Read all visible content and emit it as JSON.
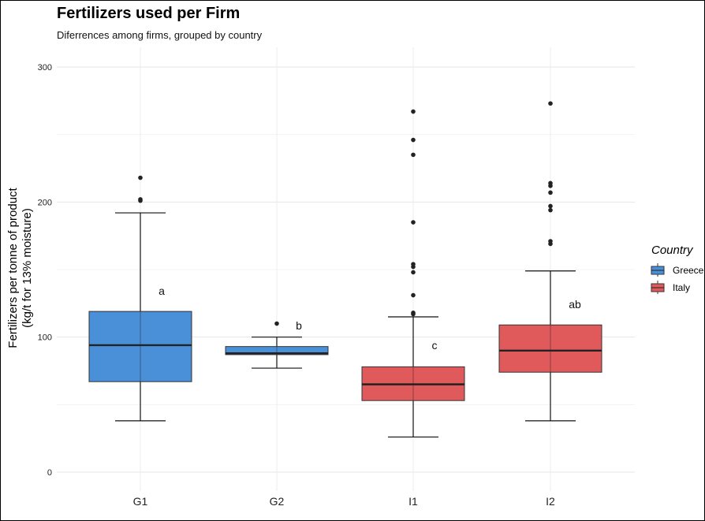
{
  "chart_data": {
    "type": "box",
    "title": "Fertilizers used per Firm",
    "subtitle": "Diferrences among firms, grouped by country",
    "ylabel_line1": "Fertilizers per tonne of product",
    "ylabel_line2": "(kg/t for 13% moisture)",
    "xlabel": "",
    "ylim": [
      -15,
      308
    ],
    "yticks": [
      0,
      100,
      200,
      300
    ],
    "grid": true,
    "legend": {
      "title": "Country",
      "placement": "right",
      "entries": [
        {
          "label": "Greece",
          "color": "#4a90d9"
        },
        {
          "label": "Italy",
          "color": "#e05a5c"
        }
      ]
    },
    "boxes": [
      {
        "category": "G1",
        "country": "Greece",
        "whisker_low": 38,
        "q1": 67,
        "median": 94,
        "q3": 119,
        "whisker_high": 192,
        "outliers": [
          218,
          201,
          202
        ],
        "annotation": "a"
      },
      {
        "category": "G2",
        "country": "Greece",
        "whisker_low": 77,
        "q1": 87,
        "median": 88,
        "q3": 93,
        "whisker_high": 100,
        "outliers": [
          110
        ],
        "annotation": "b"
      },
      {
        "category": "I1",
        "country": "Italy",
        "whisker_low": 26,
        "q1": 53,
        "median": 65,
        "q3": 78,
        "whisker_high": 115,
        "outliers": [
          118,
          117,
          131,
          148,
          152,
          154,
          185,
          235,
          246,
          267
        ],
        "annotation": "c"
      },
      {
        "category": "I2",
        "country": "Italy",
        "whisker_low": 38,
        "q1": 74,
        "median": 90,
        "q3": 109,
        "whisker_high": 149,
        "outliers": [
          169,
          171,
          194,
          197,
          207,
          212,
          214,
          273
        ],
        "annotation": "ab"
      }
    ]
  }
}
